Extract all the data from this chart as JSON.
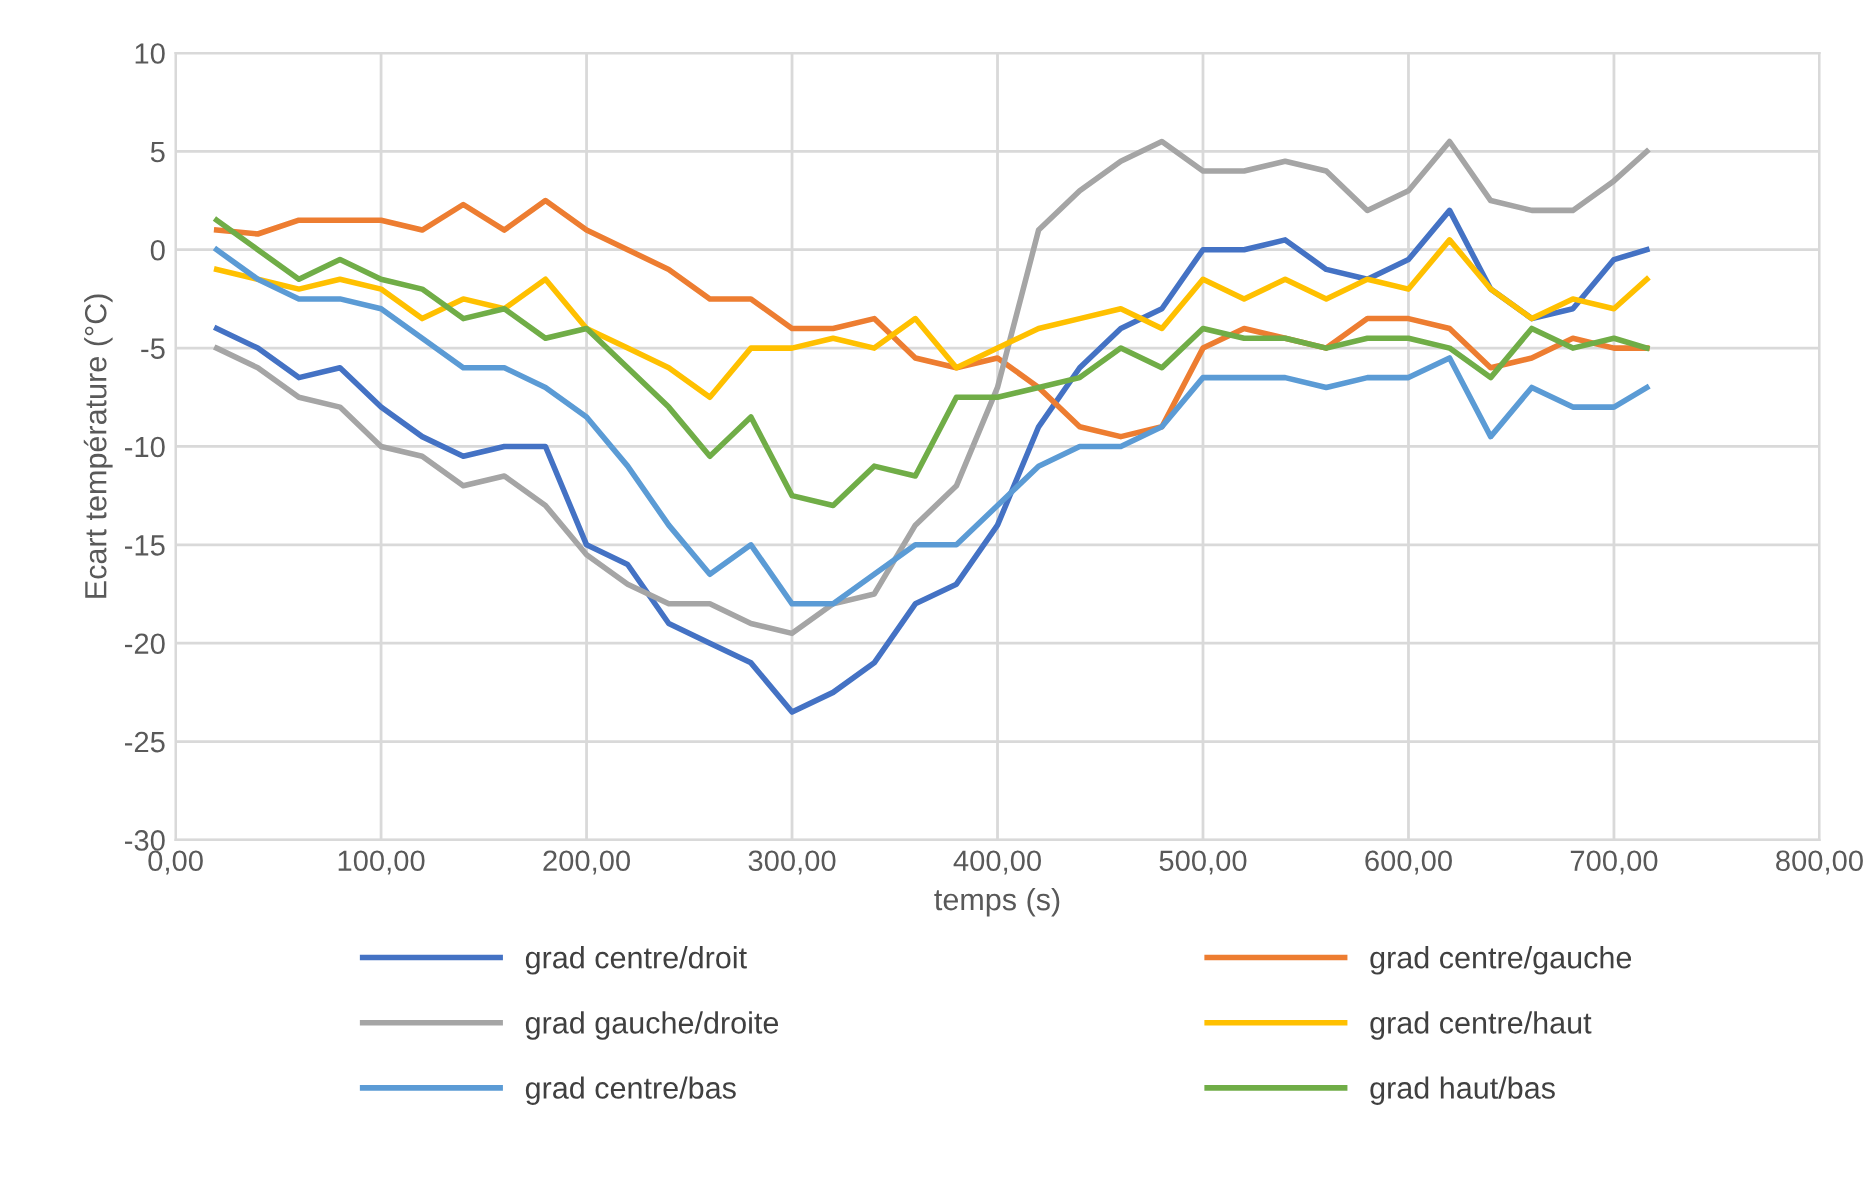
{
  "chart_data": {
    "type": "line",
    "xlabel": "temps (s)",
    "ylabel": "Ecart température (°C)",
    "x": [
      20,
      40,
      60,
      80,
      100,
      120,
      140,
      160,
      180,
      200,
      220,
      240,
      260,
      280,
      300,
      320,
      340,
      360,
      380,
      400,
      420,
      440,
      460,
      480,
      500,
      520,
      540,
      560,
      580,
      600,
      620,
      640,
      660,
      680,
      700,
      716
    ],
    "series": [
      {
        "name": "grad centre/droit",
        "color": "#4472c4",
        "values": [
          -4,
          -5,
          -6.5,
          -6,
          -8,
          -9.5,
          -10.5,
          -10,
          -10,
          -15,
          -16,
          -19,
          -20,
          -21,
          -23.5,
          -22.5,
          -21,
          -18,
          -17,
          -14,
          -9,
          -6,
          -4,
          -3,
          0,
          0,
          0.5,
          -1,
          -1.5,
          -0.5,
          2,
          -2,
          -3.5,
          -3,
          -0.5,
          0
        ]
      },
      {
        "name": "grad centre/gauche",
        "color": "#ed7d31",
        "values": [
          1,
          0.8,
          1.5,
          1.5,
          1.5,
          1,
          2.3,
          1,
          2.5,
          1,
          0,
          -1,
          -2.5,
          -2.5,
          -4,
          -4,
          -3.5,
          -5.5,
          -6,
          -5.5,
          -7,
          -9,
          -9.5,
          -9,
          -5,
          -4,
          -4.5,
          -5,
          -3.5,
          -3.5,
          -4,
          -6,
          -5.5,
          -4.5,
          -5,
          -5
        ]
      },
      {
        "name": "grad gauche/droite",
        "color": "#a5a5a5",
        "values": [
          -5,
          -6,
          -7.5,
          -8,
          -10,
          -10.5,
          -12,
          -11.5,
          -13,
          -15.5,
          -17,
          -18,
          -18,
          -19,
          -19.5,
          -18,
          -17.5,
          -14,
          -12,
          -7,
          1,
          3,
          4.5,
          5.5,
          4,
          4,
          4.5,
          4,
          2,
          3,
          5.5,
          2.5,
          2,
          2,
          3.5,
          5
        ]
      },
      {
        "name": "grad centre/haut",
        "color": "#ffc000",
        "values": [
          -1,
          -1.5,
          -2,
          -1.5,
          -2,
          -3.5,
          -2.5,
          -3,
          -1.5,
          -4,
          -5,
          -6,
          -7.5,
          -5,
          -5,
          -4.5,
          -5,
          -3.5,
          -6,
          -5,
          -4,
          -3.5,
          -3,
          -4,
          -1.5,
          -2.5,
          -1.5,
          -2.5,
          -1.5,
          -2,
          0.5,
          -2,
          -3.5,
          -2.5,
          -3,
          -1.5
        ]
      },
      {
        "name": "grad centre/bas",
        "color": "#5b9bd5",
        "values": [
          0,
          -1.5,
          -2.5,
          -2.5,
          -3,
          -4.5,
          -6,
          -6,
          -7,
          -8.5,
          -11,
          -14,
          -16.5,
          -15,
          -18,
          -18,
          -16.5,
          -15,
          -15,
          -13,
          -11,
          -10,
          -10,
          -9,
          -6.5,
          -6.5,
          -6.5,
          -7,
          -6.5,
          -6.5,
          -5.5,
          -9.5,
          -7,
          -8,
          -8,
          -7
        ]
      },
      {
        "name": "grad haut/bas",
        "color": "#70ad47",
        "values": [
          1.5,
          0,
          -1.5,
          -0.5,
          -1.5,
          -2,
          -3.5,
          -3,
          -4.5,
          -4,
          -6,
          -8,
          -10.5,
          -8.5,
          -12.5,
          -13,
          -11,
          -11.5,
          -7.5,
          -7.5,
          -7,
          -6.5,
          -5,
          -6,
          -4,
          -4.5,
          -4.5,
          -5,
          -4.5,
          -4.5,
          -5,
          -6.5,
          -4,
          -5,
          -4.5,
          -5
        ]
      }
    ],
    "xlim": [
      0,
      800
    ],
    "xticks": [
      {
        "value": 0,
        "label": "0,00"
      },
      {
        "value": 100,
        "label": "100,00"
      },
      {
        "value": 200,
        "label": "200,00"
      },
      {
        "value": 300,
        "label": "300,00"
      },
      {
        "value": 400,
        "label": "400,00"
      },
      {
        "value": 500,
        "label": "500,00"
      },
      {
        "value": 600,
        "label": "600,00"
      },
      {
        "value": 700,
        "label": "700,00"
      },
      {
        "value": 800,
        "label": "800,00"
      }
    ],
    "ylim": [
      -30,
      10
    ],
    "yticks": [
      -30,
      -25,
      -20,
      -15,
      -10,
      -5,
      0,
      5,
      10
    ],
    "grid": true,
    "legend": "bottom",
    "marker": "none",
    "line_style": "solid"
  }
}
